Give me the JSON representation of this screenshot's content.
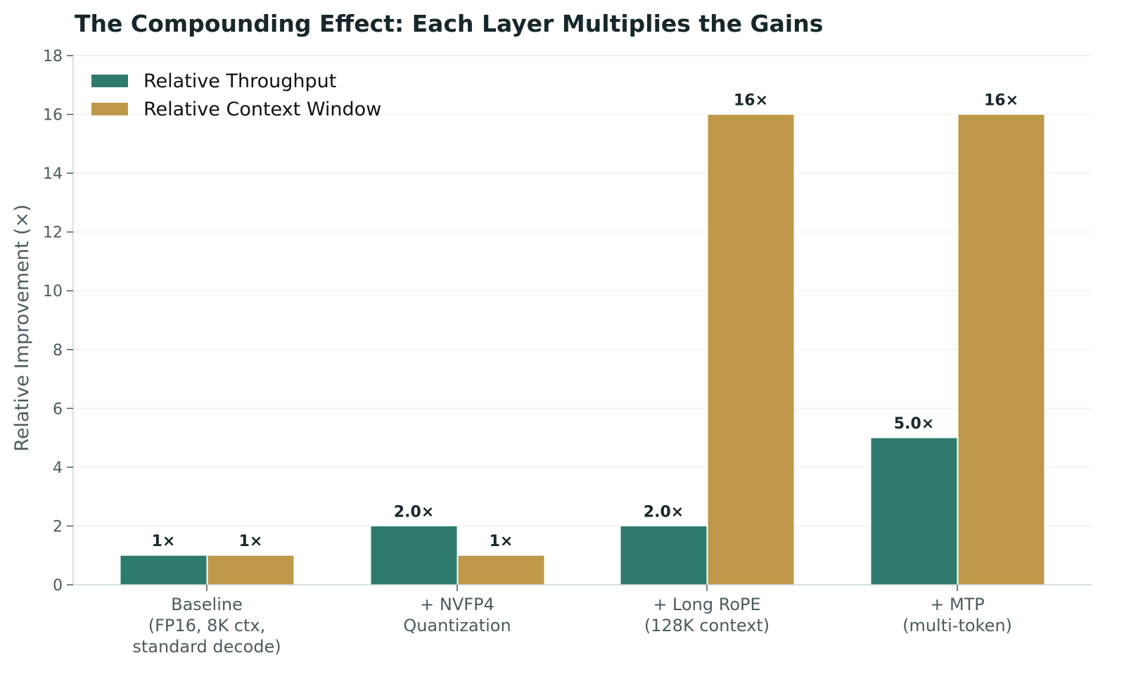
{
  "chart_data": {
    "type": "bar",
    "title": "The Compounding Effect: Each Layer Multiplies the Gains",
    "xlabel": "",
    "ylabel": "Relative Improvement (×)",
    "ylim": [
      0,
      18
    ],
    "yticks": [
      0,
      2,
      4,
      6,
      8,
      10,
      12,
      14,
      16,
      18
    ],
    "grid": true,
    "legend_position": "top-left",
    "categories": [
      [
        "Baseline",
        "(FP16, 8K ctx,",
        "standard decode)"
      ],
      [
        "+ NVFP4",
        "Quantization"
      ],
      [
        "+ Long RoPE",
        "(128K context)"
      ],
      [
        "+ MTP",
        "(multi-token)"
      ]
    ],
    "series": [
      {
        "name": "Relative Throughput",
        "color": "#2e7b6e",
        "values": [
          1,
          2,
          2,
          5
        ],
        "labels": [
          "1×",
          "2.0×",
          "2.0×",
          "5.0×"
        ]
      },
      {
        "name": "Relative Context Window",
        "color": "#bf9949",
        "values": [
          1,
          1,
          16,
          16
        ],
        "labels": [
          "1×",
          "1×",
          "16×",
          "16×"
        ]
      }
    ]
  }
}
